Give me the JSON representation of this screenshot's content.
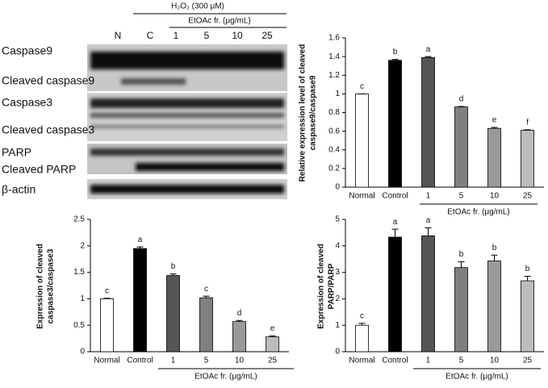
{
  "blot": {
    "treatment": "H₂O₂ (300 μM)",
    "group_label": "EtOAc fr. (μg/mL)",
    "lanes": [
      "N",
      "C",
      "1",
      "5",
      "10",
      "25"
    ],
    "rows": [
      "Caspase9",
      "Cleaved caspase9",
      "Caspase3",
      "Cleaved caspase3",
      "PARP",
      "Cleaved PARP",
      "β-actin"
    ]
  },
  "chart_data": [
    {
      "type": "bar",
      "ylabel": [
        "Relative expression level of cleaved",
        "caspase9/caspase9"
      ],
      "categories": [
        "Normal",
        "Control",
        "1",
        "5",
        "10",
        "25"
      ],
      "x_group_label": "EtOAc fr. (μg/mL)",
      "values": [
        1.0,
        1.36,
        1.39,
        0.86,
        0.63,
        0.61
      ],
      "errors": [
        0,
        0.01,
        0.01,
        0.005,
        0.01,
        0.005
      ],
      "annotations": [
        "c",
        "b",
        "a",
        "d",
        "e",
        "f"
      ],
      "colors": [
        "#ffffff",
        "#000000",
        "#555555",
        "#808080",
        "#9a9a9a",
        "#bcbcbc"
      ],
      "ylim": [
        0,
        1.6
      ],
      "yticks": [
        0,
        0.2,
        0.4,
        0.6,
        0.8,
        1,
        1.2,
        1.4,
        1.6
      ]
    },
    {
      "type": "bar",
      "ylabel": [
        "Expression of cleaved",
        "caspase3/caspase3"
      ],
      "categories": [
        "Normal",
        "Control",
        "1",
        "5",
        "10",
        "25"
      ],
      "x_group_label": "EtOAc fr. (μg/mL)",
      "values": [
        1.0,
        1.95,
        1.44,
        1.02,
        0.57,
        0.28
      ],
      "errors": [
        0.01,
        0.03,
        0.03,
        0.03,
        0.02,
        0.02
      ],
      "annotations": [
        "c",
        "a",
        "b",
        "c",
        "d",
        "e"
      ],
      "colors": [
        "#ffffff",
        "#000000",
        "#555555",
        "#808080",
        "#9a9a9a",
        "#bcbcbc"
      ],
      "ylim": [
        0,
        2.5
      ],
      "yticks": [
        0,
        0.5,
        1,
        1.5,
        2,
        2.5
      ]
    },
    {
      "type": "bar",
      "ylabel": [
        "Expression of cleaved",
        "PARP/PARP"
      ],
      "categories": [
        "Normal",
        "Control",
        "1",
        "5",
        "10",
        "25"
      ],
      "x_group_label": "EtOAc fr. (μg/mL)",
      "values": [
        1.0,
        4.33,
        4.38,
        3.18,
        3.43,
        2.68
      ],
      "errors": [
        0.07,
        0.3,
        0.3,
        0.22,
        0.22,
        0.17
      ],
      "annotations": [
        "c",
        "a",
        "a",
        "b",
        "b",
        "b"
      ],
      "colors": [
        "#ffffff",
        "#000000",
        "#555555",
        "#808080",
        "#9a9a9a",
        "#bcbcbc"
      ],
      "ylim": [
        0,
        5
      ],
      "yticks": [
        0,
        1,
        2,
        3,
        4,
        5
      ]
    }
  ]
}
